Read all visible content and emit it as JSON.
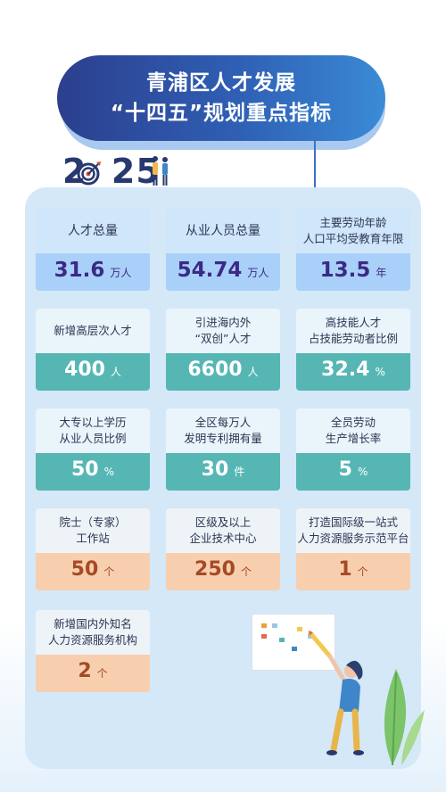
{
  "title": {
    "line1": "青浦区人才发展",
    "line2": "“十四五”规划重点指标"
  },
  "year_logo": {
    "digits": [
      "2",
      "0",
      "2",
      "5"
    ]
  },
  "colors": {
    "title_start": "#2c3f8e",
    "title_end": "#3a8bd6",
    "panel": "#d4e8f8",
    "blue_band": "#a9d0f8",
    "teal_band": "#56b6b4",
    "peach_band": "#f8cfae"
  },
  "cards": [
    {
      "label": [
        "人才总量"
      ],
      "value": "31.6",
      "unit": "万人"
    },
    {
      "label": [
        "从业人员总量"
      ],
      "value": "54.74",
      "unit": "万人"
    },
    {
      "label": [
        "主要劳动年龄",
        "人口平均受教育年限"
      ],
      "value": "13.5",
      "unit": "年"
    },
    {
      "label": [
        "新增高层次人才"
      ],
      "value": "400",
      "unit": "人"
    },
    {
      "label": [
        "引进海内外",
        "“双创”人才"
      ],
      "value": "6600",
      "unit": "人"
    },
    {
      "label": [
        "高技能人才",
        "占技能劳动者比例"
      ],
      "value": "32.4",
      "unit": "%"
    },
    {
      "label": [
        "大专以上学历",
        "从业人员比例"
      ],
      "value": "50",
      "unit": "%"
    },
    {
      "label": [
        "全区每万人",
        "发明专利拥有量"
      ],
      "value": "30",
      "unit": "件"
    },
    {
      "label": [
        "全员劳动",
        "生产增长率"
      ],
      "value": "5",
      "unit": "%"
    },
    {
      "label": [
        "院士（专家）",
        "工作站"
      ],
      "value": "50",
      "unit": "个"
    },
    {
      "label": [
        "区级及以上",
        "企业技术中心"
      ],
      "value": "250",
      "unit": "个"
    },
    {
      "label": [
        "打造国际级一站式",
        "人力资源服务示范平台"
      ],
      "value": "1",
      "unit": "个"
    },
    {
      "label": [
        "新增国内外知名",
        "人力资源服务机构"
      ],
      "value": "2",
      "unit": "个"
    }
  ],
  "illustration": {
    "figure_icon": "woman-painting-icon",
    "plant_icon": "leaf-plant-icon"
  }
}
